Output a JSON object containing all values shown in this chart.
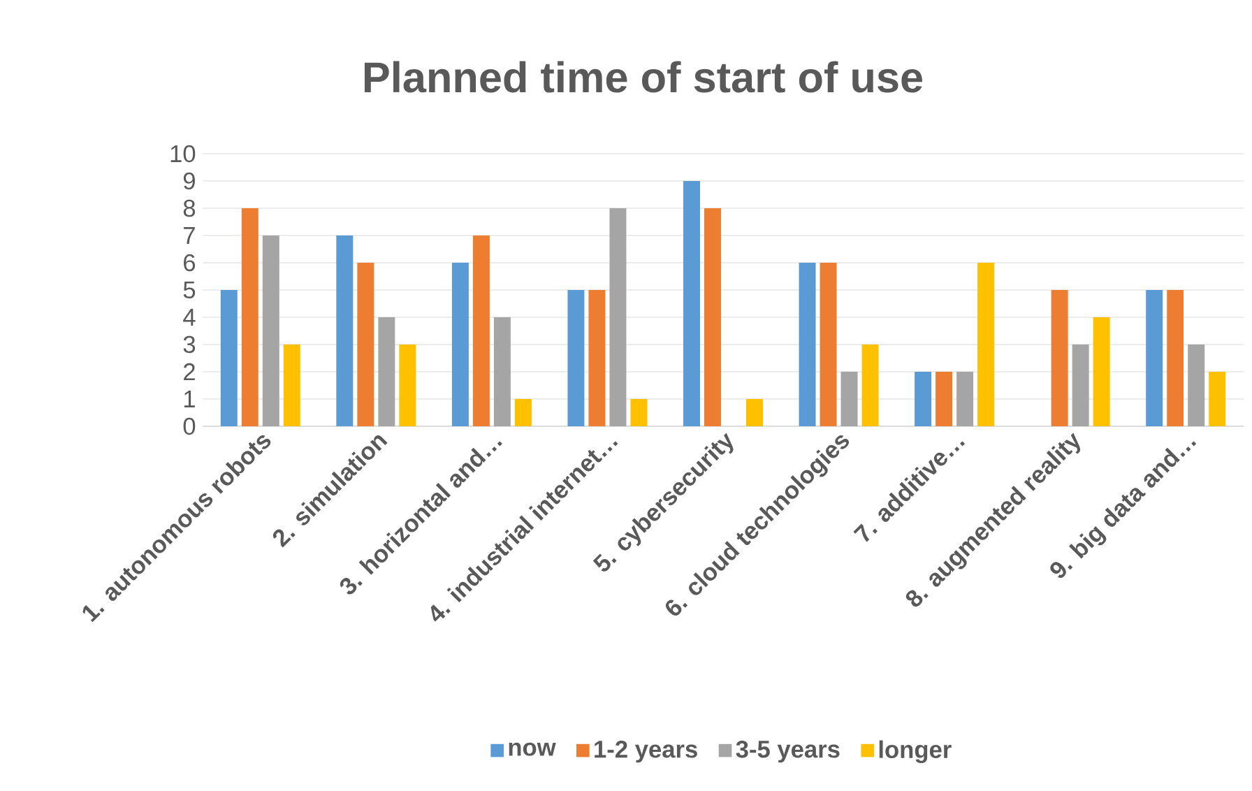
{
  "chart_data": {
    "type": "bar",
    "title": "Planned time of start of use",
    "categories": [
      "1. autonomous robots",
      "2. simulation",
      "3. horizontal and…",
      "4. industrial internet…",
      "5. cybersecurity",
      "6. cloud technologies",
      "7. additive…",
      "8. augmented reality",
      "9. big data and…"
    ],
    "series": [
      {
        "name": "now",
        "color": "#5b9bd5",
        "values": [
          5,
          7,
          6,
          5,
          9,
          6,
          2,
          0,
          5
        ]
      },
      {
        "name": "1-2 years",
        "color": "#ed7d31",
        "values": [
          8,
          6,
          7,
          5,
          8,
          6,
          2,
          5,
          5
        ]
      },
      {
        "name": "3-5 years",
        "color": "#a5a5a5",
        "values": [
          7,
          4,
          4,
          8,
          0,
          2,
          2,
          3,
          3
        ]
      },
      {
        "name": "longer",
        "color": "#ffc000",
        "values": [
          3,
          3,
          1,
          1,
          1,
          3,
          6,
          4,
          2
        ]
      }
    ],
    "ylim": [
      0,
      10
    ],
    "yticks": [
      0,
      1,
      2,
      3,
      4,
      5,
      6,
      7,
      8,
      9,
      10
    ],
    "grid": "y",
    "legend": "bottom"
  }
}
